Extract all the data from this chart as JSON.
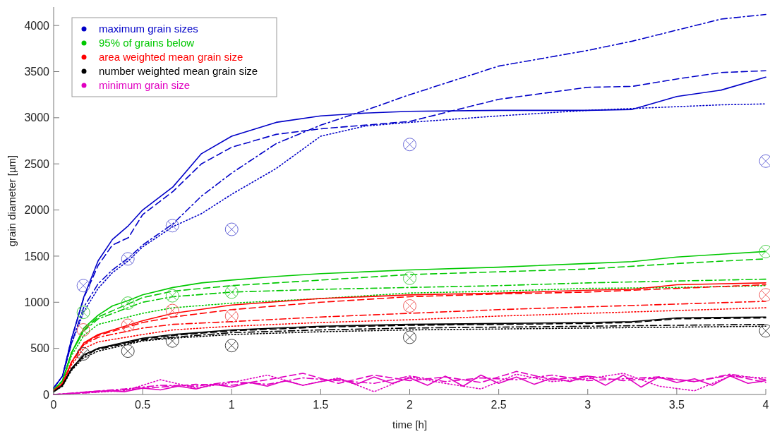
{
  "chart_data": {
    "type": "line",
    "xlabel": "time [h]",
    "ylabel": "grain diameter [µm]",
    "xlim": [
      0,
      4
    ],
    "ylim": [
      0,
      4200
    ],
    "xticks": [
      0,
      0.5,
      1,
      1.5,
      2,
      2.5,
      3,
      3.5,
      4
    ],
    "yticks": [
      0,
      500,
      1000,
      1500,
      2000,
      2500,
      3000,
      3500,
      4000
    ],
    "grid": false,
    "legend": "top left",
    "series": [
      {
        "name": "maximum grain sizes",
        "color": "#0000c8",
        "line_style": "solid",
        "x": [
          0,
          0.05,
          0.1,
          0.17,
          0.25,
          0.33,
          0.42,
          0.5,
          0.67,
          0.83,
          1,
          1.25,
          1.5,
          1.75,
          2,
          2.5,
          3,
          3.25,
          3.5,
          3.75,
          4
        ],
        "values": [
          70,
          200,
          600,
          1060,
          1450,
          1680,
          1830,
          2000,
          2250,
          2610,
          2800,
          2950,
          3020,
          3050,
          3070,
          3080,
          3080,
          3090,
          3230,
          3300,
          3440
        ]
      },
      {
        "color": "#0000c8",
        "line_style": "dashed",
        "x": [
          0,
          0.05,
          0.1,
          0.17,
          0.25,
          0.33,
          0.42,
          0.5,
          0.67,
          0.83,
          1,
          1.25,
          1.5,
          1.75,
          2,
          2.5,
          3,
          3.25,
          3.5,
          3.75,
          4
        ],
        "values": [
          70,
          200,
          600,
          1050,
          1400,
          1620,
          1700,
          1950,
          2200,
          2500,
          2680,
          2820,
          2880,
          2920,
          2960,
          3200,
          3330,
          3340,
          3420,
          3490,
          3510
        ]
      },
      {
        "color": "#0000c8",
        "line_style": "dashdot",
        "x": [
          0,
          0.05,
          0.1,
          0.17,
          0.25,
          0.33,
          0.42,
          0.5,
          0.67,
          0.83,
          1,
          1.25,
          1.5,
          1.75,
          2,
          2.5,
          3,
          3.25,
          3.5,
          3.75,
          4
        ],
        "values": [
          70,
          200,
          550,
          950,
          1200,
          1350,
          1480,
          1620,
          1850,
          2150,
          2400,
          2720,
          2920,
          3080,
          3250,
          3560,
          3730,
          3830,
          3950,
          4070,
          4120
        ]
      },
      {
        "color": "#0000c8",
        "line_style": "dotted",
        "x": [
          0,
          0.05,
          0.1,
          0.17,
          0.25,
          0.33,
          0.42,
          0.5,
          0.67,
          0.83,
          1,
          1.25,
          1.5,
          1.75,
          2,
          2.5,
          3,
          3.25,
          3.5,
          3.75,
          4
        ],
        "values": [
          70,
          200,
          550,
          900,
          1150,
          1320,
          1450,
          1600,
          1820,
          1960,
          2170,
          2450,
          2800,
          2910,
          2950,
          3020,
          3080,
          3100,
          3120,
          3140,
          3150
        ]
      },
      {
        "name": "95% of grains below",
        "color": "#00c800",
        "line_style": "solid",
        "x": [
          0,
          0.05,
          0.1,
          0.17,
          0.25,
          0.33,
          0.42,
          0.5,
          0.67,
          0.83,
          1,
          1.25,
          1.5,
          1.75,
          2,
          2.5,
          3,
          3.25,
          3.5,
          3.75,
          4
        ],
        "values": [
          50,
          150,
          450,
          720,
          860,
          960,
          1020,
          1080,
          1160,
          1210,
          1240,
          1280,
          1310,
          1330,
          1350,
          1380,
          1420,
          1440,
          1490,
          1520,
          1550
        ]
      },
      {
        "color": "#00c800",
        "line_style": "dashed",
        "x": [
          0,
          0.05,
          0.1,
          0.17,
          0.25,
          0.5,
          0.67,
          1,
          1.5,
          2,
          2.5,
          3,
          3.5,
          4
        ],
        "values": [
          50,
          150,
          450,
          700,
          840,
          1050,
          1120,
          1180,
          1240,
          1300,
          1330,
          1360,
          1420,
          1470
        ]
      },
      {
        "color": "#00c800",
        "line_style": "dashdot",
        "x": [
          0,
          0.05,
          0.1,
          0.17,
          0.25,
          0.5,
          0.67,
          1,
          1.5,
          2,
          2.5,
          3,
          3.5,
          4
        ],
        "values": [
          50,
          150,
          450,
          690,
          820,
          1000,
          1060,
          1110,
          1140,
          1160,
          1180,
          1210,
          1230,
          1250
        ]
      },
      {
        "color": "#00c800",
        "line_style": "dotted",
        "x": [
          0,
          0.05,
          0.1,
          0.17,
          0.25,
          0.5,
          0.67,
          1,
          1.5,
          2,
          2.5,
          3,
          3.5,
          4
        ],
        "values": [
          50,
          140,
          420,
          640,
          760,
          880,
          940,
          990,
          1040,
          1100,
          1120,
          1150,
          1160,
          1180
        ]
      },
      {
        "name": "area weighted mean grain size",
        "color": "#ff0000",
        "line_style": "solid",
        "x": [
          0,
          0.05,
          0.1,
          0.17,
          0.25,
          0.5,
          0.67,
          1,
          1.5,
          2,
          2.5,
          3,
          3.25,
          3.5,
          4
        ],
        "values": [
          40,
          120,
          350,
          560,
          650,
          800,
          880,
          970,
          1040,
          1080,
          1100,
          1130,
          1140,
          1190,
          1210
        ]
      },
      {
        "color": "#ff0000",
        "line_style": "dashed",
        "x": [
          0,
          0.05,
          0.1,
          0.17,
          0.25,
          0.5,
          0.67,
          1,
          1.5,
          2,
          2.5,
          3,
          3.5,
          4
        ],
        "values": [
          40,
          120,
          350,
          550,
          640,
          780,
          840,
          920,
          1000,
          1060,
          1090,
          1110,
          1150,
          1190
        ]
      },
      {
        "color": "#ff0000",
        "line_style": "dashdot",
        "x": [
          0,
          0.05,
          0.1,
          0.17,
          0.25,
          0.5,
          0.67,
          1,
          1.5,
          2,
          2.5,
          3,
          3.5,
          4
        ],
        "values": [
          40,
          120,
          340,
          540,
          620,
          720,
          760,
          790,
          840,
          880,
          920,
          950,
          980,
          1010
        ]
      },
      {
        "color": "#ff0000",
        "line_style": "dotted",
        "x": [
          0,
          0.05,
          0.1,
          0.17,
          0.25,
          0.5,
          0.67,
          1,
          1.5,
          2,
          2.5,
          3,
          3.5,
          4
        ],
        "values": [
          40,
          110,
          320,
          500,
          570,
          650,
          700,
          740,
          780,
          810,
          850,
          880,
          910,
          940
        ]
      },
      {
        "name": "number weighted mean grain size",
        "color": "#000000",
        "line_style": "solid",
        "x": [
          0,
          0.05,
          0.1,
          0.17,
          0.25,
          0.5,
          0.67,
          1,
          1.5,
          2,
          2.5,
          3,
          3.25,
          3.5,
          4
        ],
        "values": [
          30,
          100,
          280,
          430,
          500,
          610,
          650,
          700,
          740,
          760,
          770,
          780,
          790,
          830,
          840
        ]
      },
      {
        "color": "#000000",
        "line_style": "dashed",
        "x": [
          0,
          0.05,
          0.1,
          0.17,
          0.25,
          0.5,
          0.67,
          1,
          1.5,
          2,
          2.5,
          3,
          3.25,
          3.5,
          4
        ],
        "values": [
          30,
          100,
          280,
          430,
          500,
          600,
          640,
          690,
          730,
          750,
          760,
          770,
          780,
          820,
          830
        ]
      },
      {
        "color": "#000000",
        "line_style": "dashdot",
        "x": [
          0,
          0.05,
          0.1,
          0.17,
          0.25,
          0.5,
          0.67,
          1,
          1.5,
          2,
          2.5,
          3,
          3.5,
          4
        ],
        "values": [
          30,
          100,
          270,
          420,
          490,
          590,
          620,
          670,
          700,
          720,
          730,
          740,
          750,
          760
        ]
      },
      {
        "color": "#000000",
        "line_style": "dotted",
        "x": [
          0,
          0.05,
          0.1,
          0.17,
          0.25,
          0.5,
          0.67,
          1,
          1.5,
          2,
          2.5,
          3,
          3.5,
          4
        ],
        "values": [
          30,
          90,
          260,
          400,
          470,
          580,
          610,
          650,
          680,
          700,
          710,
          720,
          730,
          740
        ]
      },
      {
        "name": "minimum grain size",
        "color": "#e000c0",
        "line_style": "solid",
        "x": [
          0,
          0.1,
          0.2,
          0.3,
          0.4,
          0.5,
          0.6,
          0.7,
          0.8,
          0.9,
          1,
          1.1,
          1.2,
          1.3,
          1.4,
          1.5,
          1.6,
          1.7,
          1.8,
          1.9,
          2,
          2.1,
          2.2,
          2.3,
          2.4,
          2.5,
          2.6,
          2.7,
          2.8,
          2.9,
          3,
          3.1,
          3.2,
          3.3,
          3.4,
          3.5,
          3.6,
          3.7,
          3.8,
          3.9,
          4
        ],
        "values": [
          0,
          10,
          30,
          40,
          30,
          70,
          50,
          90,
          60,
          110,
          80,
          130,
          90,
          150,
          100,
          140,
          170,
          110,
          190,
          120,
          180,
          100,
          200,
          90,
          210,
          120,
          190,
          110,
          180,
          140,
          200,
          100,
          210,
          80,
          190,
          130,
          170,
          100,
          200,
          120,
          150
        ]
      },
      {
        "color": "#e000c0",
        "line_style": "dashed",
        "x": [
          0,
          0.2,
          0.4,
          0.6,
          0.8,
          1,
          1.2,
          1.4,
          1.6,
          1.8,
          2,
          2.2,
          2.4,
          2.6,
          2.8,
          3,
          3.2,
          3.4,
          3.6,
          3.8,
          4
        ],
        "values": [
          0,
          20,
          50,
          80,
          110,
          100,
          160,
          230,
          120,
          210,
          150,
          190,
          130,
          250,
          160,
          200,
          150,
          180,
          140,
          210,
          130
        ]
      },
      {
        "color": "#e000c0",
        "line_style": "dashdot",
        "x": [
          0,
          0.2,
          0.4,
          0.6,
          0.8,
          1,
          1.2,
          1.4,
          1.6,
          1.8,
          2,
          2.2,
          2.4,
          2.6,
          2.8,
          3,
          3.2,
          3.4,
          3.6,
          3.8,
          4
        ],
        "values": [
          0,
          30,
          60,
          100,
          90,
          140,
          110,
          180,
          150,
          120,
          200,
          140,
          180,
          160,
          210,
          150,
          170,
          190,
          140,
          220,
          160
        ]
      },
      {
        "color": "#e000c0",
        "line_style": "dotted",
        "x": [
          0,
          0.2,
          0.4,
          0.6,
          0.8,
          1,
          1.2,
          1.4,
          1.6,
          1.8,
          2,
          2.2,
          2.4,
          2.6,
          2.8,
          3,
          3.2,
          3.4,
          3.6,
          3.8,
          4
        ],
        "values": [
          0,
          20,
          40,
          160,
          70,
          130,
          210,
          100,
          180,
          30,
          190,
          120,
          60,
          220,
          140,
          170,
          230,
          90,
          40,
          200,
          180
        ]
      },
      {
        "type": "scatter",
        "marker": "circle",
        "color": "#6a6ad8",
        "x": [
          0.167,
          0.417,
          0.667,
          1,
          2,
          4
        ],
        "values": [
          1180,
          1470,
          1830,
          1790,
          2710,
          2530
        ]
      },
      {
        "type": "scatter",
        "marker": "circle",
        "color": "#50d050",
        "x": [
          0.167,
          0.417,
          0.667,
          1,
          2,
          4
        ],
        "values": [
          890,
          990,
          1070,
          1110,
          1260,
          1550
        ]
      },
      {
        "type": "scatter",
        "marker": "circle",
        "color": "#f06060",
        "x": [
          0.167,
          0.417,
          0.667,
          1,
          2,
          4
        ],
        "values": [
          700,
          750,
          910,
          850,
          960,
          1080
        ]
      },
      {
        "type": "scatter",
        "marker": "circle",
        "color": "#404040",
        "x": [
          0.167,
          0.417,
          0.667,
          1,
          2,
          4
        ],
        "values": [
          440,
          470,
          580,
          530,
          620,
          690
        ]
      }
    ]
  }
}
